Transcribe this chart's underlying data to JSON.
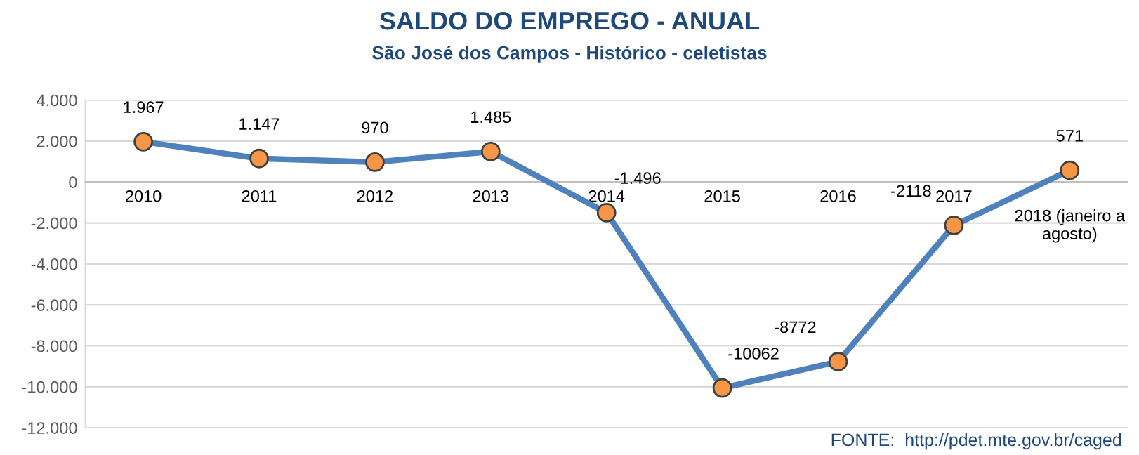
{
  "chart_data": {
    "type": "line",
    "title": "SALDO DO EMPREGO - ANUAL",
    "subtitle": "São José dos Campos - Histórico - celetistas",
    "categories": [
      "2010",
      "2011",
      "2012",
      "2013",
      "2014",
      "2015",
      "2016",
      "2017",
      "2018 (janeiro a\nagosto)"
    ],
    "series": [
      {
        "color": "#4f81bd",
        "values": [
          1967,
          1147,
          970,
          1485,
          -1496,
          -10062,
          -8772,
          -2118,
          571
        ],
        "value_labels": [
          "1.967",
          "1.147",
          "970",
          "1.485",
          "-1.496",
          "-10062",
          "-8772",
          "-2118",
          "571"
        ]
      }
    ],
    "ylim": [
      -12000,
      4000
    ],
    "yticks": [
      {
        "value": -12000,
        "label": "-12.000"
      },
      {
        "value": -10000,
        "label": "-10.000"
      },
      {
        "value": -8000,
        "label": "-8.000"
      },
      {
        "value": -6000,
        "label": "-6.000"
      },
      {
        "value": -4000,
        "label": "-4.000"
      },
      {
        "value": -2000,
        "label": "-2.000"
      },
      0,
      {
        "value": 2000,
        "label": "2.000"
      },
      {
        "value": 4000,
        "label": "4.000"
      }
    ],
    "grid": "y",
    "marker": "circle",
    "line_style": "solid",
    "annotations": [
      "FONTE:  http://pdet.mte.gov.br/caged"
    ]
  }
}
